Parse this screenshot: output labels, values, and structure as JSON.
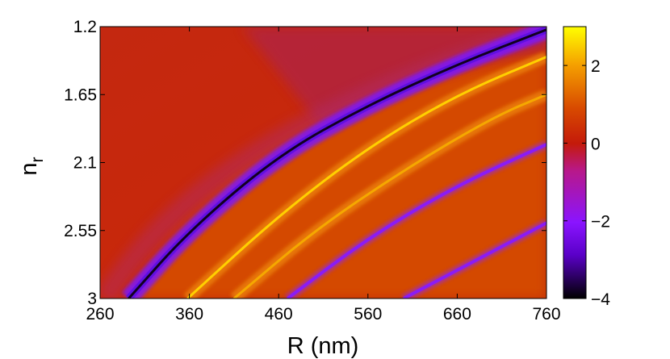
{
  "chart_data": {
    "type": "heatmap",
    "xlabel": "R (nm)",
    "ylabel": {
      "base": "n",
      "sub": "r"
    },
    "x_ticks": [
      "260",
      "360",
      "460",
      "560",
      "660",
      "760"
    ],
    "y_ticks": [
      "1.2",
      "1.65",
      "2.1",
      "2.55",
      "3"
    ],
    "xlim": [
      260,
      760
    ],
    "ylim": [
      1.2,
      3
    ],
    "y_direction": "reversed",
    "colorbar": {
      "ticks": [
        "2",
        "0",
        "−2",
        "−4"
      ],
      "range": [
        -4,
        3
      ]
    },
    "colormap": [
      "#000000",
      "#5a00c8",
      "#8a14ff",
      "#c41a0a",
      "#d84a00",
      "#f5a000",
      "#ffff00"
    ],
    "grid": false,
    "description_features": {
      "dark_ridge": {
        "n_at_x": [
          [
            292,
            3
          ],
          [
            360,
            2.55
          ],
          [
            460,
            2.05
          ],
          [
            560,
            1.72
          ],
          [
            660,
            1.45
          ],
          [
            760,
            1.22
          ]
        ],
        "level": -4
      },
      "bright_ridges": [
        {
          "n_at_x": [
            [
              358,
              3
            ],
            [
              460,
              2.45
            ],
            [
              560,
              2.0
            ],
            [
              660,
              1.65
            ],
            [
              760,
              1.4
            ]
          ],
          "level": 2.5
        },
        {
          "n_at_x": [
            [
              410,
              3
            ],
            [
              500,
              2.55
            ],
            [
              600,
              2.15
            ],
            [
              700,
              1.8
            ],
            [
              760,
              1.65
            ]
          ],
          "level": 1.5
        }
      ],
      "purple_ridges": [
        {
          "n_at_x": [
            [
              470,
              3
            ],
            [
              560,
              2.6
            ],
            [
              660,
              2.25
            ],
            [
              760,
              1.98
            ]
          ],
          "level": -2
        },
        {
          "n_at_x": [
            [
              600,
              3
            ],
            [
              680,
              2.75
            ],
            [
              760,
              2.5
            ]
          ],
          "level": -2
        }
      ]
    }
  }
}
